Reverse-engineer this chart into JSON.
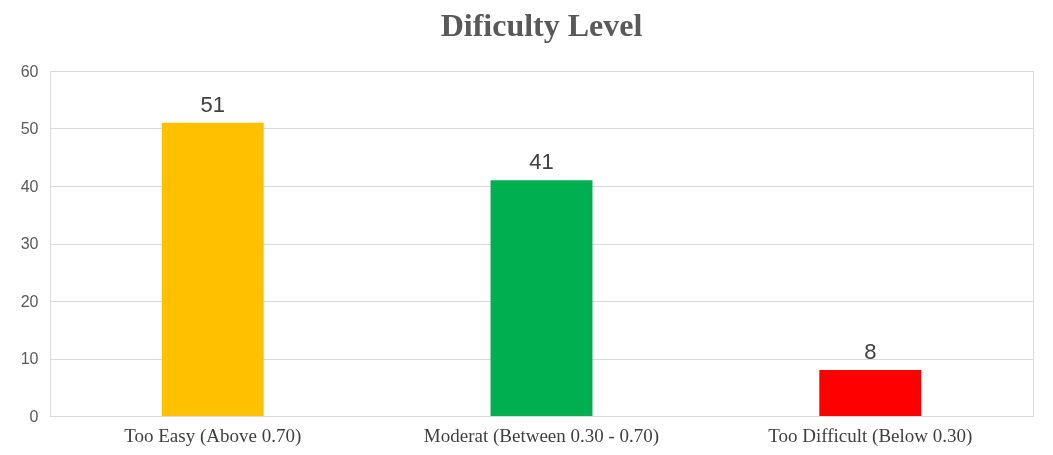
{
  "chart_data": {
    "type": "bar",
    "title": "Dificulty Level",
    "categories": [
      "Too Easy (Above 0.70)",
      "Moderat (Between 0.30 - 0.70)",
      "Too Difficult (Below 0.30)"
    ],
    "values": [
      51,
      41,
      8
    ],
    "colors": [
      "#ffc000",
      "#00b050",
      "#ff0000"
    ],
    "ylim": [
      0,
      60
    ],
    "yticks": [
      0,
      10,
      20,
      30,
      40,
      50,
      60
    ],
    "grid": "y",
    "data_labels": true
  }
}
